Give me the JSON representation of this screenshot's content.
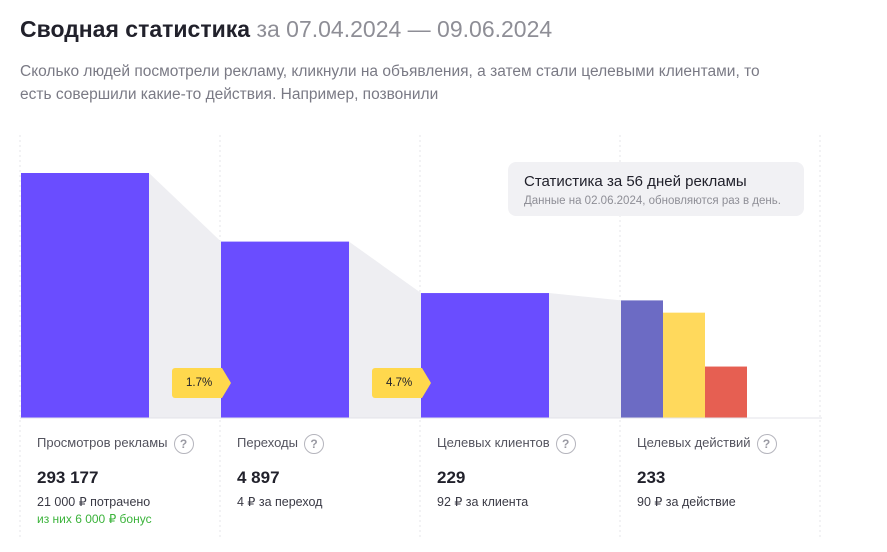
{
  "header": {
    "title": "Сводная статистика",
    "period": "за 07.04.2024 — 09.06.2024",
    "description": "Сколько людей посмотрели рекламу, кликнули на объявления, а затем стали целевыми клиентами, то есть совершили какие-то действия. Например, позвонили"
  },
  "tooltip": {
    "title": "Статистика за 56 дней рекламы",
    "note": "Данные на 02.06.2024, обновляются раз в день."
  },
  "conversions": [
    "1.7%",
    "4.7%"
  ],
  "stats": [
    {
      "label": "Просмотров рекламы",
      "value": "293 177",
      "sub": "21 000 ₽ потрачено",
      "bonus": "из них 6 000 ₽ бонус"
    },
    {
      "label": "Переходы",
      "value": "4 897",
      "sub": "4 ₽ за переход"
    },
    {
      "label": "Целевых клиентов",
      "value": "229",
      "sub": "92 ₽ за клиента"
    },
    {
      "label": "Целевых действий",
      "value": "233",
      "sub": "90 ₽ за действие"
    }
  ],
  "help_glyph": "?",
  "colors": {
    "main_bar": "#6a4dff",
    "action_bars": [
      "#6c6bc4",
      "#ffd95c",
      "#e65f52"
    ],
    "funnel": "#eeeef2",
    "badge": "#ffd84d",
    "bonus": "#3bb33b"
  },
  "chart_data": {
    "type": "bar",
    "title": "Сводная статистика",
    "categories": [
      "Просмотров рекламы",
      "Переходы",
      "Целевых клиентов",
      "Целевых действий"
    ],
    "bar_fill_levels": [
      1.0,
      0.72,
      0.51
    ],
    "action_bar_levels": [
      0.48,
      0.43,
      0.21
    ],
    "conversion_labels": [
      "1.7%",
      "4.7%"
    ],
    "grid": false
  }
}
